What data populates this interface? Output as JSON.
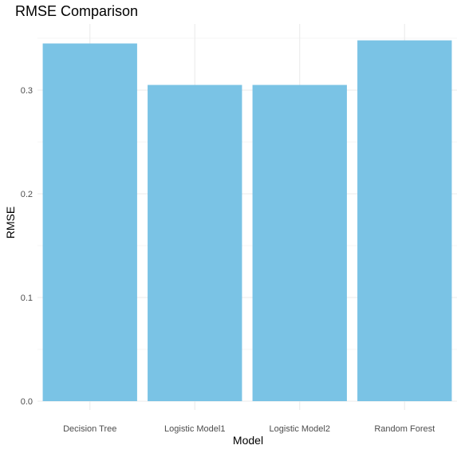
{
  "chart_data": {
    "type": "bar",
    "title": "RMSE Comparison",
    "xlabel": "Model",
    "ylabel": "RMSE",
    "categories": [
      "Decision Tree",
      "Logistic Model1",
      "Logistic Model2",
      "Random Forest"
    ],
    "values": [
      0.345,
      0.305,
      0.305,
      0.348
    ],
    "ylim": [
      0,
      0.35
    ],
    "yticks": [
      0.0,
      0.1,
      0.2,
      0.3
    ],
    "ytick_labels": [
      "0.0",
      "0.1",
      "0.2",
      "0.3"
    ],
    "bar_color": "#7AC3E5",
    "grid": true,
    "legend": "none"
  }
}
